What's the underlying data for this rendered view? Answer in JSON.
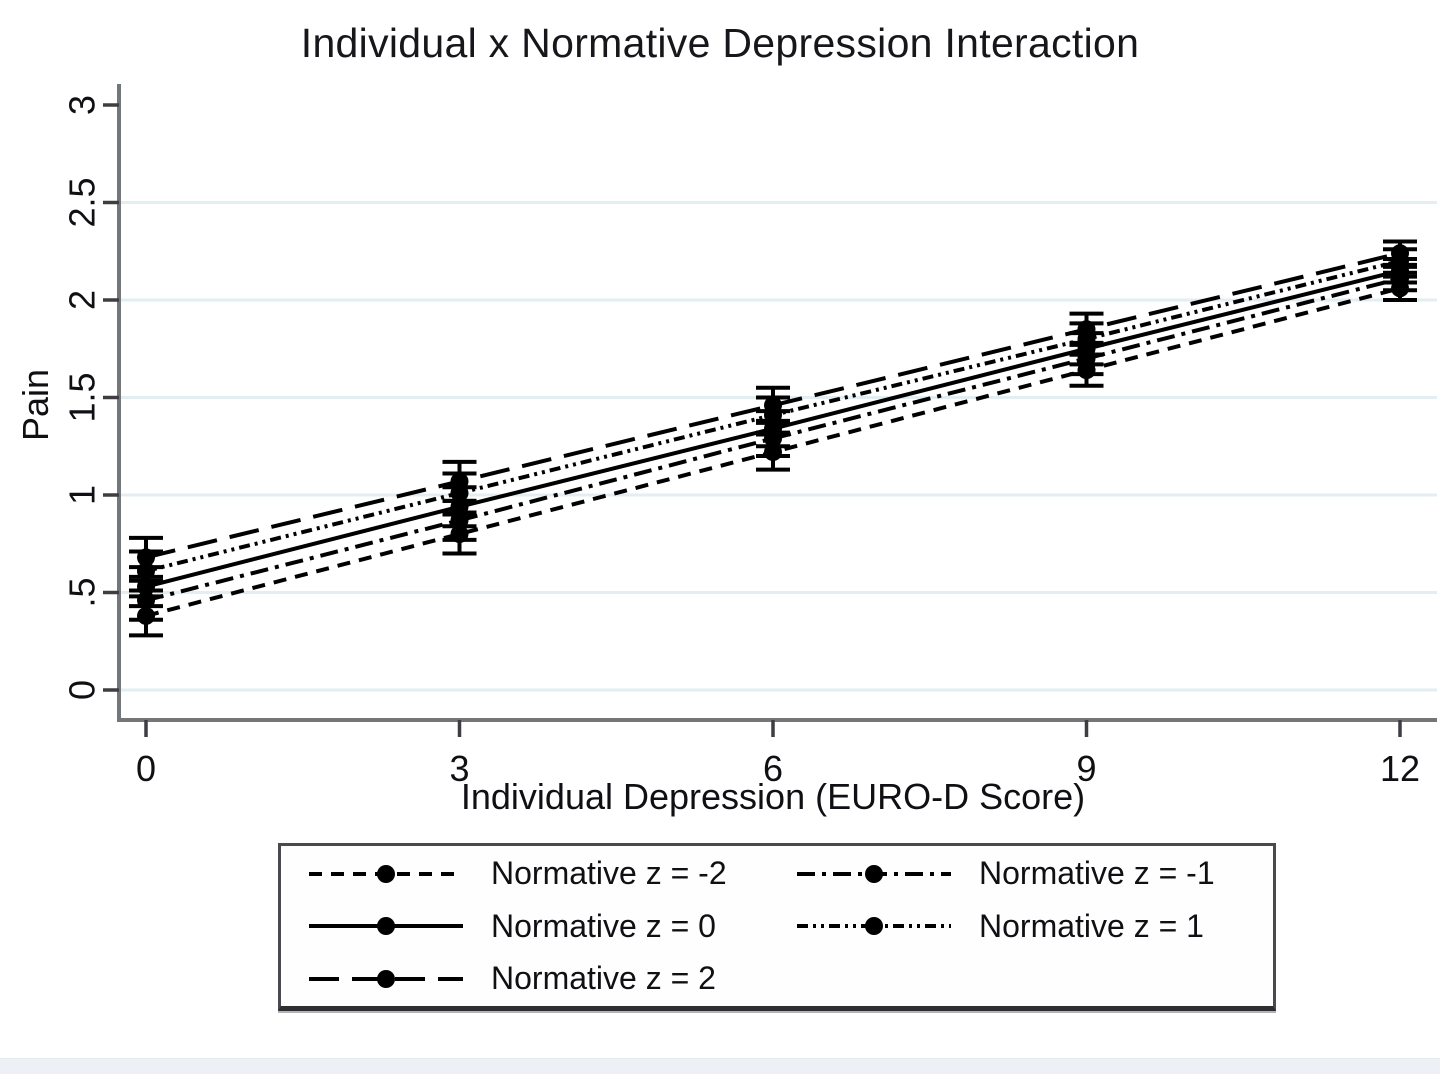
{
  "page": {
    "background": "#ffffff",
    "bottom_bar_color": "#edf1f5"
  },
  "chart_data": {
    "type": "line",
    "title": "Individual x Normative Depression Interaction",
    "xlabel": "Individual Depression (EURO-D Score)",
    "ylabel": "Pain",
    "x": [
      0,
      3,
      6,
      9,
      12
    ],
    "xtick_labels": [
      "0",
      "3",
      "6",
      "9",
      "12"
    ],
    "yticks": [
      0,
      0.5,
      1,
      1.5,
      2,
      2.5,
      3
    ],
    "ytick_labels": [
      "0",
      ".5",
      "1",
      "1.5",
      "2",
      "2.5",
      "3"
    ],
    "gridlines": [
      0,
      0.5,
      1,
      1.5,
      2,
      2.5
    ],
    "xlim": [
      0,
      12
    ],
    "ylim": [
      0,
      3
    ],
    "grid_color": "#e3eef2",
    "axis_color": "#737779",
    "tick_color": "#3e3e42",
    "line_color": "#000000",
    "marker": "filled-circle",
    "error_bars": true,
    "legend_position": "bottom",
    "series": [
      {
        "name": "Normative z = -2",
        "line_style": "dash",
        "dash": "13 9",
        "values": [
          0.38,
          0.8,
          1.22,
          1.64,
          2.06
        ],
        "ci": [
          0.1,
          0.1,
          0.09,
          0.08,
          0.06
        ]
      },
      {
        "name": "Normative z = -1",
        "line_style": "dash-dot",
        "dash": "18 7 4 7",
        "values": [
          0.46,
          0.87,
          1.29,
          1.7,
          2.11
        ],
        "ci": [
          0.1,
          0.1,
          0.09,
          0.08,
          0.06
        ]
      },
      {
        "name": "Normative z = 0",
        "line_style": "solid",
        "dash": "",
        "values": [
          0.53,
          0.94,
          1.34,
          1.75,
          2.15
        ],
        "ci": [
          0.1,
          0.1,
          0.09,
          0.08,
          0.06
        ]
      },
      {
        "name": "Normative z = 1",
        "line_style": "shortdash-dot-dot",
        "dash": "11 5 3 5 3 5",
        "values": [
          0.61,
          1.01,
          1.41,
          1.8,
          2.2
        ],
        "ci": [
          0.1,
          0.1,
          0.09,
          0.08,
          0.06
        ]
      },
      {
        "name": "Normative z = 2",
        "line_style": "longdash",
        "dash": "30 13",
        "values": [
          0.68,
          1.07,
          1.46,
          1.85,
          2.24
        ],
        "ci": [
          0.1,
          0.1,
          0.09,
          0.08,
          0.06
        ]
      }
    ]
  }
}
